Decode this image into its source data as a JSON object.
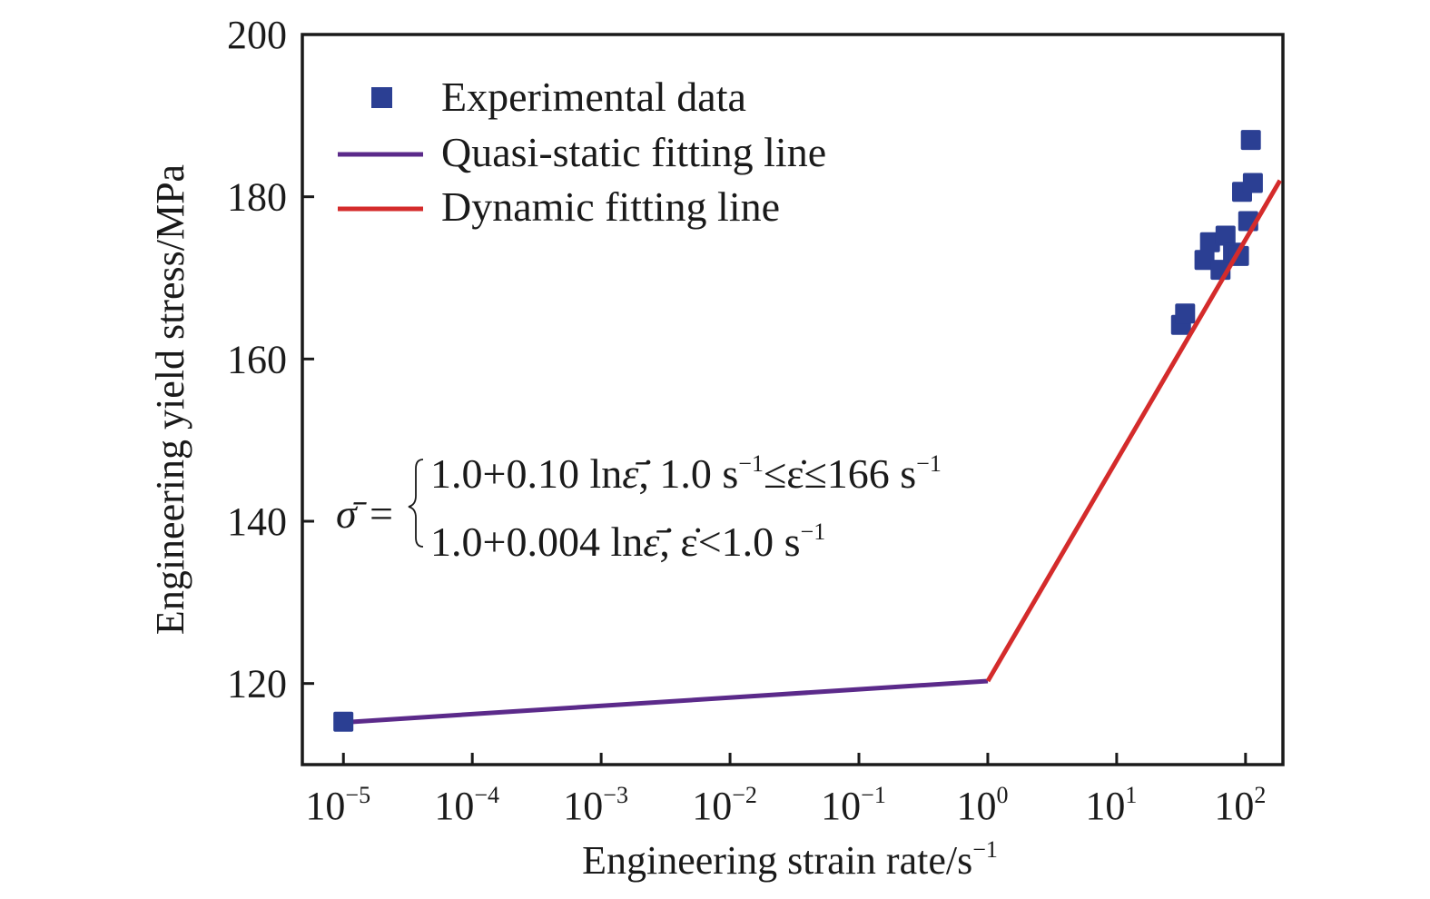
{
  "chart_data": {
    "type": "line",
    "title": "",
    "xlabel": "Engineering strain rate/s",
    "xlabel_sup": "−1",
    "ylabel": "Engineering yield stress/MPa",
    "xscale": "log",
    "xlim": [
      4.8e-06,
      195
    ],
    "ylim": [
      110,
      200
    ],
    "grid": false,
    "legend_position": "top-left",
    "x_ticks": [
      {
        "base": "10",
        "exp": "−5",
        "value": 1e-05
      },
      {
        "base": "10",
        "exp": "−4",
        "value": 0.0001
      },
      {
        "base": "10",
        "exp": "−3",
        "value": 0.001
      },
      {
        "base": "10",
        "exp": "−2",
        "value": 0.01
      },
      {
        "base": "10",
        "exp": "−1",
        "value": 0.1
      },
      {
        "base": "10",
        "exp": "0",
        "value": 1
      },
      {
        "base": "10",
        "exp": "1",
        "value": 10
      },
      {
        "base": "10",
        "exp": "2",
        "value": 100
      }
    ],
    "y_ticks": [
      {
        "label": "120",
        "value": 120
      },
      {
        "label": "140",
        "value": 140
      },
      {
        "label": "160",
        "value": 160
      },
      {
        "label": "180",
        "value": 180
      },
      {
        "label": "200",
        "value": 200
      }
    ],
    "series": [
      {
        "name": "Experimental data",
        "kind": "scatter",
        "marker": "square",
        "color": "#2b3f93",
        "points": [
          {
            "x": 1e-05,
            "y": 115.3
          },
          {
            "x": 31.6,
            "y": 164.2
          },
          {
            "x": 34,
            "y": 165.6
          },
          {
            "x": 48,
            "y": 172.2
          },
          {
            "x": 53,
            "y": 174.4
          },
          {
            "x": 64,
            "y": 171.0
          },
          {
            "x": 70,
            "y": 175.2
          },
          {
            "x": 80,
            "y": 173.1
          },
          {
            "x": 89,
            "y": 172.7
          },
          {
            "x": 94,
            "y": 180.6
          },
          {
            "x": 105,
            "y": 177.0
          },
          {
            "x": 114,
            "y": 181.7
          },
          {
            "x": 110,
            "y": 187.0
          }
        ]
      },
      {
        "name": "Quasi-static fitting line",
        "kind": "line",
        "color": "#5b2a8a",
        "points": [
          {
            "x": 1e-05,
            "y": 115.2
          },
          {
            "x": 1,
            "y": 120.3
          }
        ]
      },
      {
        "name": "Dynamic fitting line",
        "kind": "line",
        "color": "#d42b2b",
        "points": [
          {
            "x": 1,
            "y": 120.3
          },
          {
            "x": 185,
            "y": 182.0
          }
        ]
      }
    ],
    "annotation": {
      "lhs": "σ̄ =",
      "lines": [
        {
          "main": "1.0+0.10 ln",
          "eps": "ε̄̇",
          "cond1": ", 1.0 s",
          "sup1": "−1",
          "cond2": "≤ε̇≤166 s",
          "sup2": "−1"
        },
        {
          "main": "1.0+0.004 ln",
          "eps": "ε̄̇",
          "cond1": ", ε̇<1.0 s",
          "sup1": "−1",
          "cond2": "",
          "sup2": ""
        }
      ]
    }
  },
  "legend": {
    "items": [
      {
        "label": "Experimental data",
        "kind": "square",
        "color": "#2b3f93"
      },
      {
        "label": "Quasi-static fitting line",
        "kind": "line",
        "color": "#5b2a8a"
      },
      {
        "label": "Dynamic fitting line",
        "kind": "line",
        "color": "#d42b2b"
      }
    ]
  },
  "colors": {
    "axis": "#1a1a1a",
    "background": "#ffffff"
  }
}
